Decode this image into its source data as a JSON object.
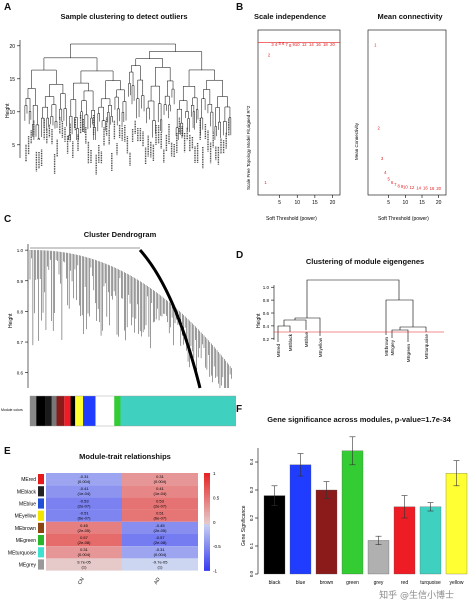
{
  "panels": {
    "a": {
      "label": "A",
      "title": "Sample clustering to detect outliers",
      "ylabel": "Height",
      "yticks": [
        "5",
        "10",
        "15",
        "20"
      ]
    },
    "b": {
      "label": "B",
      "titles": [
        "Scale independence",
        "Mean connectivity"
      ],
      "ylabels": [
        "Scale Free Topology Model Fit,signed R^2",
        "Mean Connectivity"
      ],
      "xlabels": [
        "Soft Threshold (power)",
        "Soft Threshold (power)"
      ]
    },
    "c": {
      "label": "C",
      "title": "Cluster Dendrogram",
      "ylabel": "Height",
      "rowlabel": "Module colors",
      "yticks": [
        "0.6",
        "0.7",
        "0.8",
        "0.9",
        "1.0"
      ]
    },
    "d": {
      "label": "D",
      "title": "Clustering of module eigengenes",
      "ylabel": "Height",
      "yticks": [
        "0.2",
        "0.4",
        "0.6",
        "0.8",
        "1.0"
      ],
      "leaves": [
        "MEred",
        "MEblack",
        "MEblue",
        "MEyellow",
        "MEbrown",
        "MEgrey",
        "MEgreen",
        "MEturquoise"
      ]
    },
    "e": {
      "label": "E",
      "title": "Module-trait relationships",
      "rows": [
        "MEred",
        "MEblack",
        "MEblue",
        "MEyellow",
        "MEbrown",
        "MEgreen",
        "MEturquoise",
        "MEgrey"
      ],
      "row_colors": [
        "#e41a1c",
        "#222222",
        "#1f50d6",
        "#f2e600",
        "#8b4513",
        "#2bb52b",
        "#40e0d0",
        "#999999"
      ],
      "cols": [
        "CN",
        "AD"
      ],
      "cells": [
        [
          {
            "t": "-0.31",
            "p": "(0.004)"
          },
          {
            "t": "0.31",
            "p": "(0.004)"
          }
        ],
        [
          {
            "t": "-0.41",
            "p": "(1e-04)"
          },
          {
            "t": "0.41",
            "p": "(1e-04)"
          }
        ],
        [
          {
            "t": "-0.53",
            "p": "(2e-07)"
          },
          {
            "t": "0.53",
            "p": "(2e-07)"
          }
        ],
        [
          {
            "t": "-0.51",
            "p": "(6e-07)"
          },
          {
            "t": "0.51",
            "p": "(6e-07)"
          }
        ],
        [
          {
            "t": "0.45",
            "p": "(2e-05)"
          },
          {
            "t": "-0.45",
            "p": "(2e-05)"
          }
        ],
        [
          {
            "t": "0.57",
            "p": "(2e-08)"
          },
          {
            "t": "-0.57",
            "p": "(2e-08)"
          }
        ],
        [
          {
            "t": "0.31",
            "p": "(0.004)"
          },
          {
            "t": "-0.31",
            "p": "(0.004)"
          }
        ],
        [
          {
            "t": "9.7e-05",
            "p": "(1)"
          },
          {
            "t": "-9.7e-05",
            "p": "(1)"
          }
        ]
      ],
      "scale_ticks": [
        "1",
        "0.5",
        "0",
        "-0.5",
        "-1"
      ]
    },
    "f": {
      "label": "F",
      "title": "Gene significance across modules, p-value=1.7e-34",
      "ylabel": "Gene Significance",
      "yticks": [
        "0.0",
        "0.1",
        "0.2",
        "0.3",
        "0.4"
      ]
    }
  },
  "chart_data": [
    {
      "type": "line",
      "panel": "B-left",
      "title": "Scale independence",
      "xlabel": "Soft Threshold (power)",
      "ylabel": "Scale Free Topology Model Fit,signed R^2",
      "x": [
        1,
        2,
        3,
        4,
        5,
        6,
        7,
        8,
        9,
        10,
        12,
        14,
        16,
        18,
        20
      ],
      "values": [
        0.1,
        0.83,
        0.89,
        0.89,
        0.895,
        0.895,
        0.89,
        0.885,
        0.89,
        0.89,
        0.89,
        0.89,
        0.89,
        0.89,
        0.89
      ],
      "xticks": [
        "5",
        "10",
        "15",
        "20"
      ],
      "xlim": [
        0,
        21
      ],
      "ylim": [
        0.05,
        0.95
      ],
      "guide_line": 0.9
    },
    {
      "type": "line",
      "panel": "B-right",
      "title": "Mean connectivity",
      "xlabel": "Soft Threshold (power)",
      "ylabel": "Mean Connectivity",
      "x": [
        1,
        2,
        3,
        4,
        5,
        6,
        7,
        8,
        9,
        10,
        12,
        14,
        16,
        18,
        20
      ],
      "values": [
        1350,
        580,
        300,
        170,
        110,
        80,
        60,
        48,
        42,
        38,
        32,
        28,
        26,
        25,
        24
      ],
      "xticks": [
        "5",
        "10",
        "15",
        "20"
      ],
      "xlim": [
        0,
        21
      ],
      "ylim": [
        0,
        1450
      ]
    },
    {
      "type": "bar",
      "panel": "F",
      "title": "Gene significance across modules, p-value=1.7e-34",
      "ylabel": "Gene Significance",
      "categories": [
        "black",
        "blue",
        "brown",
        "green",
        "grey",
        "red",
        "turquoise",
        "yellow"
      ],
      "values": [
        0.28,
        0.39,
        0.3,
        0.44,
        0.12,
        0.24,
        0.24,
        0.36
      ],
      "errors": [
        0.035,
        0.04,
        0.03,
        0.05,
        0.015,
        0.04,
        0.015,
        0.045
      ],
      "colors": [
        "#000000",
        "#1f3cff",
        "#8b1a1a",
        "#33cc33",
        "#b0b0b0",
        "#ee1c25",
        "#40d0c0",
        "#ffff33"
      ],
      "ylim": [
        0,
        0.5
      ]
    },
    {
      "type": "heatmap",
      "panel": "E",
      "title": "Module-trait relationships",
      "rows": [
        "MEred",
        "MEblack",
        "MEblue",
        "MEyellow",
        "MEbrown",
        "MEgreen",
        "MEturquoise",
        "MEgrey"
      ],
      "cols": [
        "CN",
        "AD"
      ],
      "values": [
        [
          -0.31,
          0.31
        ],
        [
          -0.41,
          0.41
        ],
        [
          -0.53,
          0.53
        ],
        [
          -0.51,
          0.51
        ],
        [
          0.45,
          -0.45
        ],
        [
          0.57,
          -0.57
        ],
        [
          0.31,
          -0.31
        ],
        [
          0.0001,
          -0.0001
        ]
      ]
    }
  ],
  "watermark": "知乎 @生信小博士"
}
